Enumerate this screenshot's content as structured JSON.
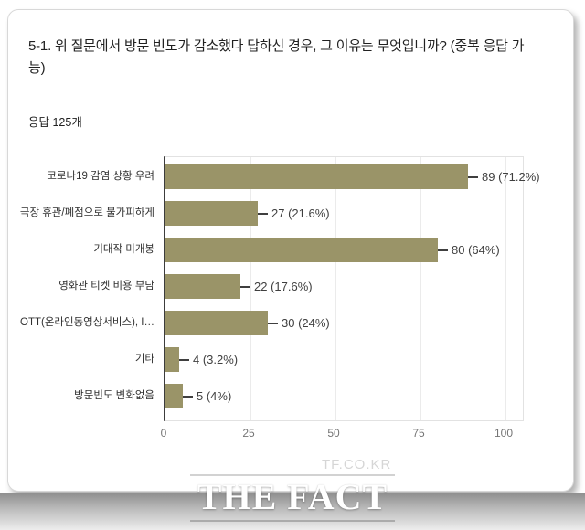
{
  "question_card": {
    "title": "5-1. 위 질문에서 방문 빈도가 감소했다 답하신 경우, 그 이유는 무엇입니까? (중복 응답 가능)",
    "response_count": "응답 125개"
  },
  "chart_data": {
    "type": "bar",
    "orientation": "horizontal",
    "categories": [
      "코로나19 감염 상황 우려",
      "극장 휴관/폐점으로 불가피하게",
      "기대작 미개봉",
      "영화관 티켓 비용 부담",
      "OTT(온라인동영상서비스), I…",
      "기타",
      "방문빈도 변화없음"
    ],
    "values": [
      89,
      27,
      80,
      22,
      30,
      4,
      5
    ],
    "value_labels": [
      "89 (71.2%)",
      "27 (21.6%)",
      "80 (64%)",
      "22 (17.6%)",
      "30 (24%)",
      "4 (3.2%)",
      "5 (4%)"
    ],
    "x_ticks": [
      0,
      25,
      50,
      75,
      100
    ],
    "xlim": [
      0,
      105
    ],
    "bar_color": "#9a9468",
    "grid": true,
    "legend_position": "none",
    "title": "",
    "xlabel": "",
    "ylabel": ""
  },
  "watermark": {
    "url_text": "TF.CO.KR",
    "logo_text": "THE FACT"
  }
}
